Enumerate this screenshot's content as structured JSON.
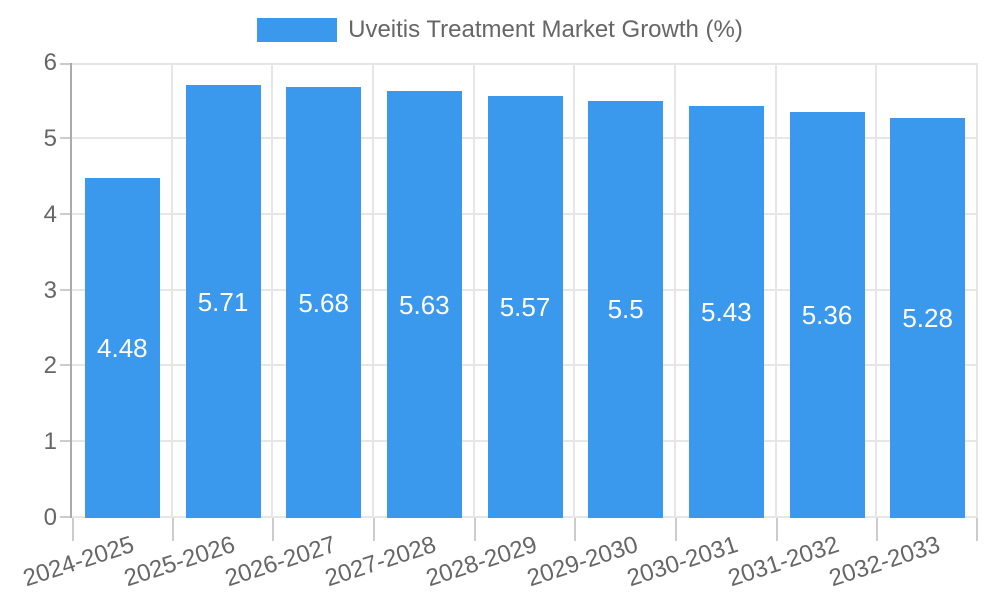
{
  "legend": {
    "label": "Uveitis Treatment Market Growth (%)"
  },
  "chart_data": {
    "type": "bar",
    "title": "Uveitis Treatment Market Growth (%)",
    "categories": [
      "2024-2025",
      "2025-2026",
      "2026-2027",
      "2027-2028",
      "2028-2029",
      "2029-2030",
      "2030-2031",
      "2031-2032",
      "2032-2033"
    ],
    "values": [
      4.48,
      5.71,
      5.68,
      5.63,
      5.57,
      5.5,
      5.43,
      5.36,
      5.28
    ],
    "value_labels": [
      "4.48",
      "5.71",
      "5.68",
      "5.63",
      "5.57",
      "5.5",
      "5.43",
      "5.36",
      "5.28"
    ],
    "xlabel": "",
    "ylabel": "",
    "ylim": [
      0,
      6
    ],
    "yticks": [
      0,
      1,
      2,
      3,
      4,
      5,
      6
    ],
    "grid": true,
    "legend_position": "top",
    "colors": {
      "bar": "#3A99EC",
      "bar_label": "#FFFFFF",
      "axis_text": "#666666",
      "grid_line": "#E6E6E6",
      "axis_line": "#ABABAB",
      "tick_mark": "#CCCCCC",
      "background": "#FFFFFF"
    }
  }
}
